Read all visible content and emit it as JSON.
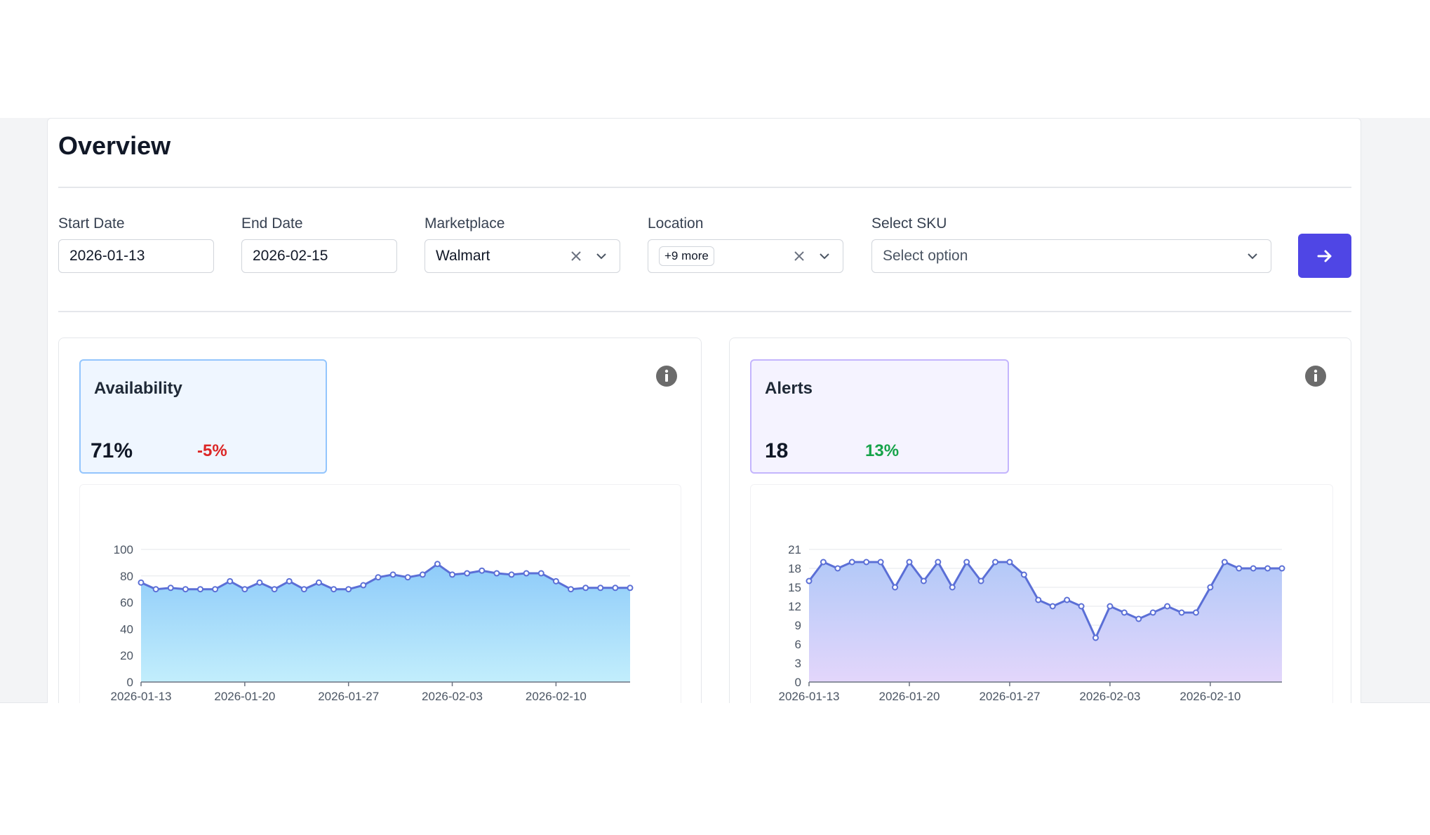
{
  "page": {
    "title": "Overview"
  },
  "filters": {
    "start_date": {
      "label": "Start Date",
      "value": "2026-01-13"
    },
    "end_date": {
      "label": "End Date",
      "value": "2026-02-15"
    },
    "marketplace": {
      "label": "Marketplace",
      "value": "Walmart"
    },
    "location": {
      "label": "Location",
      "chip": "+9 more"
    },
    "sku": {
      "label": "Select SKU",
      "placeholder": "Select option"
    },
    "submit_icon": "arrow-right-icon",
    "accent_color": "#4f46e5"
  },
  "cards": {
    "availability": {
      "title": "Availability",
      "value": "71%",
      "delta": "-5%",
      "delta_color": "#dc2626",
      "info_icon": "info-icon"
    },
    "alerts": {
      "title": "Alerts",
      "value": "18",
      "delta": "13%",
      "delta_color": "#16a34a",
      "info_icon": "info-icon"
    }
  },
  "chart_data": [
    {
      "type": "area",
      "x_tick_labels": [
        "2026-01-13",
        "2026-01-20",
        "2026-01-27",
        "2026-02-03",
        "2026-02-10"
      ],
      "y_ticks": [
        0,
        20,
        40,
        60,
        80,
        100
      ],
      "ylim": [
        0,
        100
      ],
      "xlim": [
        "2026-01-13",
        "2026-02-15"
      ],
      "grid": true,
      "x": [
        "2026-01-13",
        "2026-01-14",
        "2026-01-15",
        "2026-01-16",
        "2026-01-17",
        "2026-01-18",
        "2026-01-19",
        "2026-01-20",
        "2026-01-21",
        "2026-01-22",
        "2026-01-23",
        "2026-01-24",
        "2026-01-25",
        "2026-01-26",
        "2026-01-27",
        "2026-01-28",
        "2026-01-29",
        "2026-01-30",
        "2026-01-31",
        "2026-02-01",
        "2026-02-02",
        "2026-02-03",
        "2026-02-04",
        "2026-02-05",
        "2026-02-06",
        "2026-02-07",
        "2026-02-08",
        "2026-02-09",
        "2026-02-10",
        "2026-02-11",
        "2026-02-12",
        "2026-02-13",
        "2026-02-14",
        "2026-02-15"
      ],
      "values": [
        75,
        70,
        71,
        70,
        70,
        70,
        76,
        70,
        75,
        70,
        76,
        70,
        75,
        70,
        70,
        73,
        79,
        81,
        79,
        81,
        89,
        81,
        82,
        84,
        82,
        81,
        82,
        82,
        76,
        70,
        71,
        71,
        71,
        71
      ],
      "line_color": "#5b6fd6",
      "fill_top": "#8ecbf9",
      "fill_bottom": "#c2eefc"
    },
    {
      "type": "area",
      "x_tick_labels": [
        "2026-01-13",
        "2026-01-20",
        "2026-01-27",
        "2026-02-03",
        "2026-02-10"
      ],
      "y_ticks": [
        0,
        3,
        6,
        9,
        12,
        15,
        18,
        21
      ],
      "ylim": [
        0,
        21
      ],
      "xlim": [
        "2026-01-13",
        "2026-02-15"
      ],
      "grid": true,
      "x": [
        "2026-01-13",
        "2026-01-14",
        "2026-01-15",
        "2026-01-16",
        "2026-01-17",
        "2026-01-18",
        "2026-01-19",
        "2026-01-20",
        "2026-01-21",
        "2026-01-22",
        "2026-01-23",
        "2026-01-24",
        "2026-01-25",
        "2026-01-26",
        "2026-01-27",
        "2026-01-28",
        "2026-01-29",
        "2026-01-30",
        "2026-01-31",
        "2026-02-01",
        "2026-02-02",
        "2026-02-03",
        "2026-02-04",
        "2026-02-05",
        "2026-02-06",
        "2026-02-07",
        "2026-02-08",
        "2026-02-09",
        "2026-02-10",
        "2026-02-11",
        "2026-02-12",
        "2026-02-13",
        "2026-02-14",
        "2026-02-15"
      ],
      "values": [
        16,
        19,
        18,
        19,
        19,
        19,
        15,
        19,
        16,
        19,
        15,
        19,
        16,
        19,
        19,
        17,
        13,
        12,
        13,
        12,
        7,
        12,
        11,
        10,
        11,
        12,
        11,
        11,
        15,
        19,
        18,
        18,
        18,
        18
      ],
      "line_color": "#5b6fd6",
      "fill_top": "#b3c9f8",
      "fill_bottom": "#e3d6fb"
    }
  ]
}
